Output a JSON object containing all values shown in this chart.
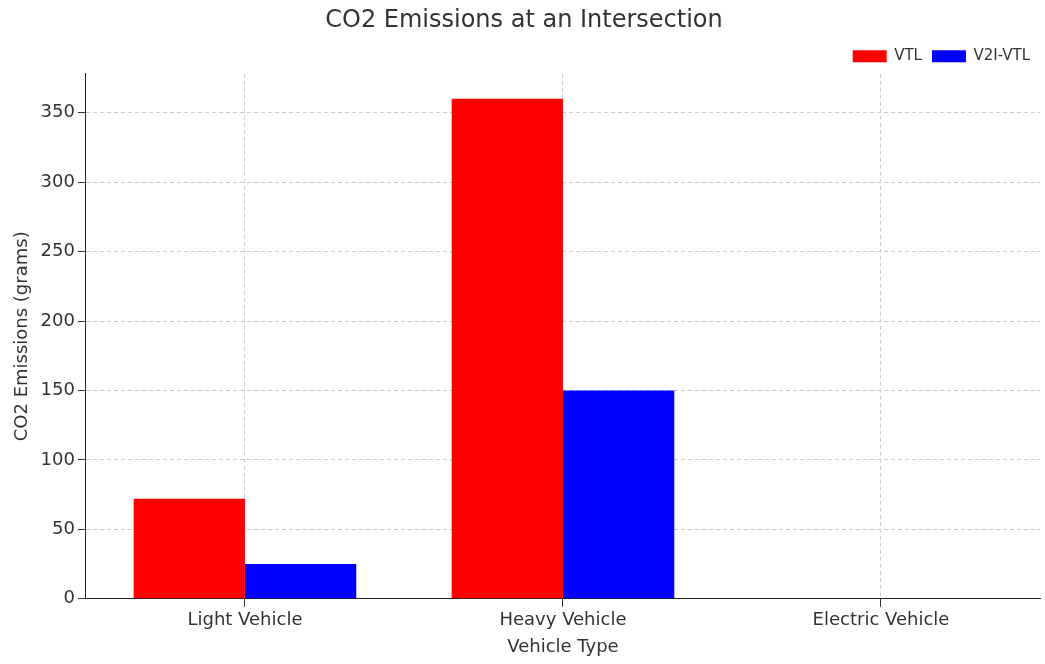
{
  "chart_data": {
    "type": "bar",
    "title": "CO2 Emissions at an Intersection",
    "xlabel": "Vehicle Type",
    "ylabel": "CO2 Emissions (grams)",
    "categories": [
      "Light Vehicle",
      "Heavy Vehicle",
      "Electric Vehicle"
    ],
    "series": [
      {
        "name": "VTL",
        "color": "#ff0000",
        "values": [
          72,
          360,
          0
        ]
      },
      {
        "name": "V2I-VTL",
        "color": "#0000ff",
        "values": [
          25,
          150,
          0
        ]
      }
    ],
    "ylim": [
      0,
      378
    ],
    "yticks": [
      0,
      50,
      100,
      150,
      200,
      250,
      300,
      350
    ],
    "grid": true,
    "legend": "top right"
  }
}
